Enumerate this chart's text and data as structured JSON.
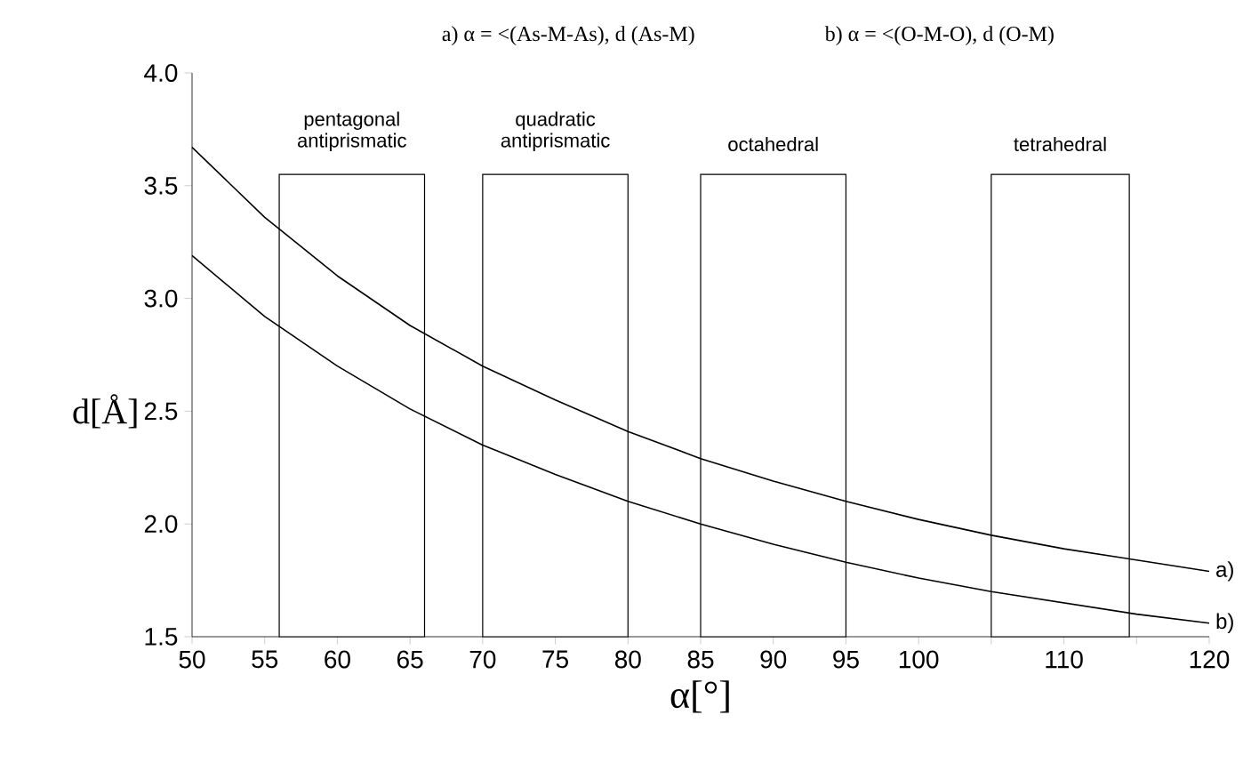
{
  "chart_data": {
    "type": "line",
    "xlabel": "α[°]",
    "ylabel": "d[Å]",
    "annotations": [
      "a) α = <(As-M-As), d (As-M)",
      "b) α = <(O-M-O), d (O-M)"
    ],
    "x": [
      50,
      55,
      60,
      65,
      70,
      75,
      80,
      85,
      90,
      95,
      100,
      105,
      110,
      115,
      120
    ],
    "series": [
      {
        "name": "a)",
        "color": "#000000",
        "values": [
          3.67,
          3.36,
          3.1,
          2.88,
          2.7,
          2.55,
          2.41,
          2.29,
          2.19,
          2.1,
          2.02,
          1.95,
          1.89,
          1.84,
          1.79
        ]
      },
      {
        "name": "b)",
        "color": "#000000",
        "values": [
          3.19,
          2.92,
          2.7,
          2.51,
          2.35,
          2.22,
          2.1,
          2.0,
          1.91,
          1.83,
          1.76,
          1.7,
          1.65,
          1.6,
          1.56
        ]
      }
    ],
    "bands": [
      {
        "axis": "x",
        "from": 56,
        "to": 66,
        "label": "pentagonal antiprismatic",
        "color": "#ffffff"
      },
      {
        "axis": "x",
        "from": 70,
        "to": 80,
        "label": "quadratic antiprismatic",
        "color": "#ffffff"
      },
      {
        "axis": "x",
        "from": 85,
        "to": 95,
        "label": "octahedral",
        "color": "#ffffff"
      },
      {
        "axis": "x",
        "from": 105,
        "to": 114.5,
        "label": "tetrahedral",
        "color": "#ffffff"
      }
    ],
    "xlim": [
      50,
      120
    ],
    "xticks": [
      50,
      55,
      60,
      65,
      70,
      75,
      80,
      85,
      90,
      95,
      100,
      {
        "value": 105,
        "label": null
      },
      110,
      {
        "value": 115,
        "label": null
      },
      120
    ],
    "ylim": [
      1.5,
      4.0
    ],
    "yticks": [
      {
        "value": 1.5,
        "label": "1.5"
      },
      {
        "value": 2.0,
        "label": "2.0"
      },
      {
        "value": 2.5,
        "label": "2.5"
      },
      {
        "value": 3.0,
        "label": "3.0"
      },
      {
        "value": 3.5,
        "label": "3.5"
      },
      {
        "value": 4.0,
        "label": "4.0"
      }
    ],
    "grid": false
  }
}
